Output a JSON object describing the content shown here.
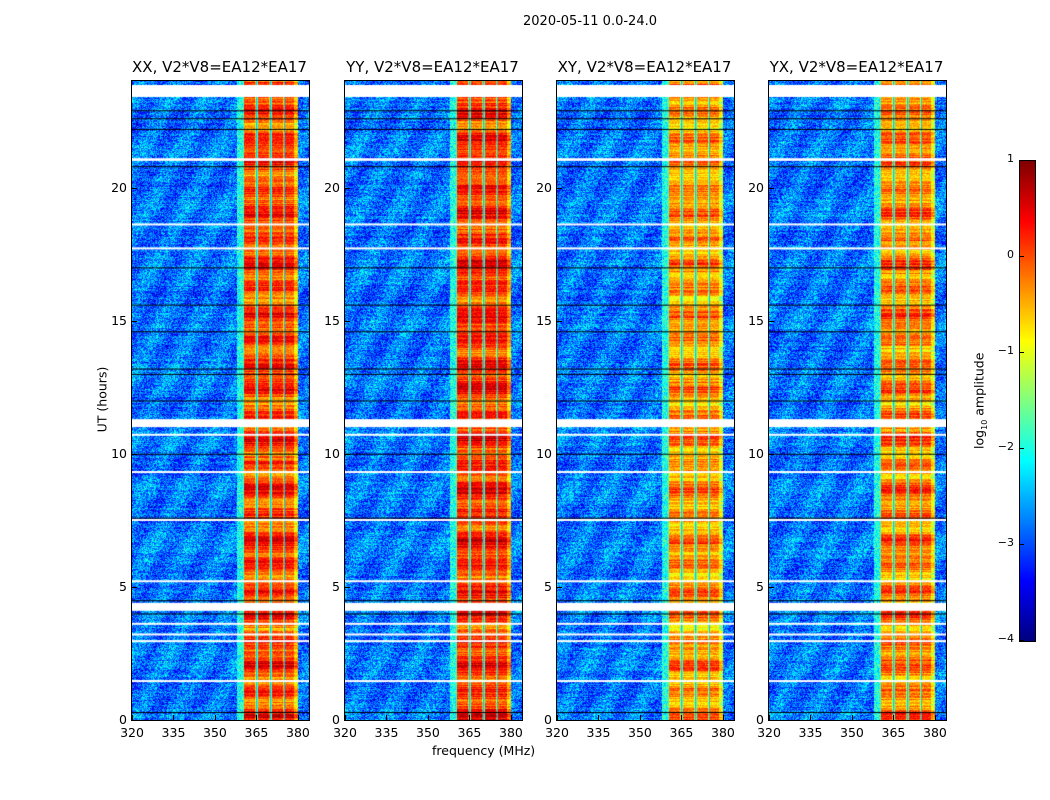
{
  "chart_data": {
    "type": "heatmap",
    "title": "2020-05-11 0.0-24.0",
    "xlabel": "frequency (MHz)",
    "ylabel": "UT (hours)",
    "xlim": [
      320,
      384
    ],
    "ylim": [
      0,
      24
    ],
    "xticks": [
      "320",
      "335",
      "350",
      "365",
      "380"
    ],
    "xtick_values": [
      320,
      335,
      350,
      365,
      380
    ],
    "yticks": [
      "0",
      "5",
      "10",
      "15",
      "20"
    ],
    "ytick_values": [
      0,
      5,
      10,
      15,
      20
    ],
    "panels": [
      {
        "title": "XX, V2*V8=EA12*EA17",
        "bright_band_mhz": [
          360,
          380
        ],
        "band_level": 0.2
      },
      {
        "title": "YY, V2*V8=EA12*EA17",
        "bright_band_mhz": [
          360,
          380
        ],
        "band_level": 0.3
      },
      {
        "title": "XY, V2*V8=EA12*EA17",
        "bright_band_mhz": [
          360,
          380
        ],
        "band_level": -0.2
      },
      {
        "title": "YX, V2*V8=EA12*EA17",
        "bright_band_mhz": [
          360,
          380
        ],
        "band_level": -0.1
      }
    ],
    "background_level": -2.8,
    "flagged_ut_ranges": [
      [
        23.4,
        23.85
      ],
      [
        21.0,
        21.1
      ],
      [
        18.6,
        18.65
      ],
      [
        17.7,
        17.75
      ],
      [
        11.0,
        11.3
      ],
      [
        10.7,
        10.75
      ],
      [
        9.3,
        9.35
      ],
      [
        7.5,
        7.55
      ],
      [
        5.2,
        5.25
      ],
      [
        4.1,
        4.4
      ],
      [
        3.6,
        3.65
      ],
      [
        3.2,
        3.25
      ],
      [
        2.95,
        3.0
      ],
      [
        1.45,
        1.5
      ]
    ],
    "black_line_ut": [
      22.9,
      22.6,
      22.2,
      20.8,
      17.0,
      15.6,
      14.6,
      13.2,
      13.0,
      12.0,
      10.0,
      7.6,
      4.5,
      4.0,
      0.3
    ],
    "colorbar": {
      "label": "log10 amplitude",
      "label_main": "log",
      "label_sub": "10",
      "label_rest": " amplitude",
      "range": [
        -4,
        1
      ],
      "ticks": [
        "1",
        "0",
        "−1",
        "−2",
        "−3",
        "−4"
      ],
      "tick_values": [
        1,
        0,
        -1,
        -2,
        -3,
        -4
      ],
      "colormap": "jet"
    }
  }
}
